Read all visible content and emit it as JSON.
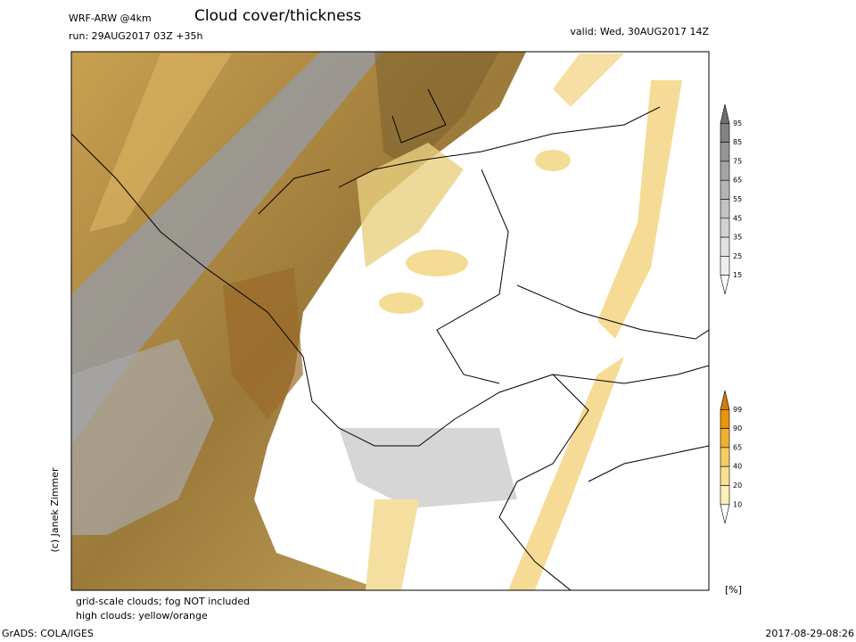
{
  "header": {
    "model": "WRF-ARW @4km",
    "title": "Cloud cover/thickness",
    "run": "run: 29AUG2017 03Z +35h",
    "valid": "valid: Wed, 30AUG2017 14Z"
  },
  "credit": "(c) Janek Zimmer",
  "notes": [
    "grid-scale clouds; fog NOT included",
    "high clouds: yellow/orange"
  ],
  "colorbars": [
    {
      "labels": [
        "95",
        "85",
        "75",
        "65",
        "55",
        "45",
        "35",
        "25",
        "15"
      ],
      "colors": [
        "#6e6e6e",
        "#828282",
        "#969696",
        "#a5a5a5",
        "#b4b4b4",
        "#c3c3c3",
        "#d2d2d2",
        "#e1e1e1",
        "#eeeeee",
        "#ffffff"
      ]
    },
    {
      "labels": [
        "99",
        "90",
        "65",
        "40",
        "20",
        "10"
      ],
      "colors": [
        "#d8780a",
        "#e8960c",
        "#f0b030",
        "#f5cc60",
        "#f8e090",
        "#fbf0b8",
        "#ffffff"
      ]
    }
  ],
  "unit": "[%]",
  "footer": {
    "left": "GrADS: COLA/IGES",
    "right": "2017-08-29-08:26"
  }
}
